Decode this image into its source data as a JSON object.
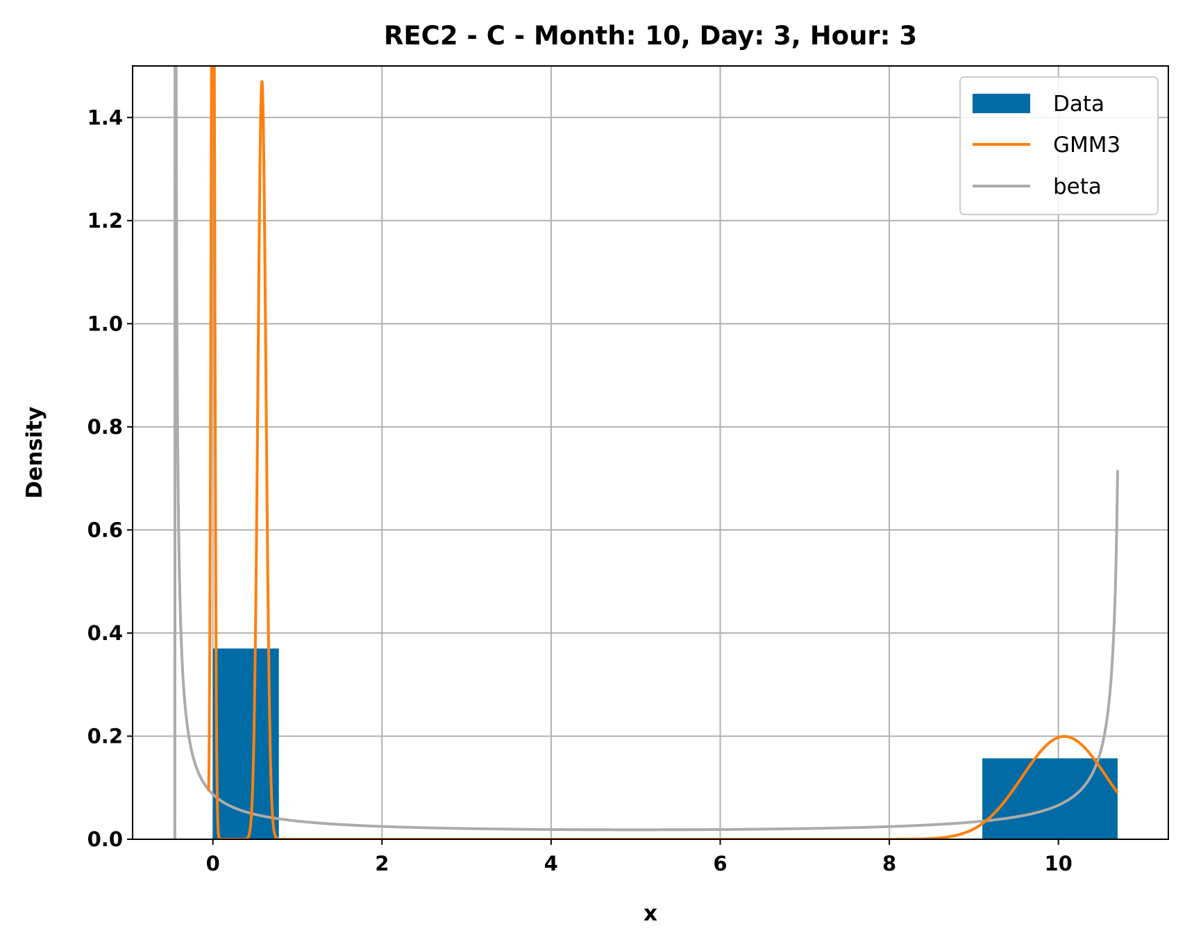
{
  "chart_data": {
    "type": "bar",
    "title": "REC2 - C - Month: 10, Day: 3, Hour: 3",
    "xlabel": "x",
    "ylabel": "Density",
    "xlim": [
      -0.95,
      11.3
    ],
    "ylim": [
      0,
      1.5
    ],
    "xticks": [
      0,
      2,
      4,
      6,
      8,
      10
    ],
    "yticks": [
      0.0,
      0.2,
      0.4,
      0.6,
      0.8,
      1.0,
      1.2,
      1.4
    ],
    "grid": true,
    "legend_position": "top-right",
    "histogram": {
      "name": "Data",
      "color": "#006ba4",
      "bins": [
        {
          "x0": 0.0,
          "x1": 0.78,
          "density": 0.37
        },
        {
          "x0": 9.1,
          "x1": 10.7,
          "density": 0.157
        }
      ]
    },
    "series": [
      {
        "name": "GMM3",
        "type": "line",
        "color": "#ff800e",
        "components": [
          {
            "weight": 0.107,
            "mean": 0.0,
            "sd": 0.02
          },
          {
            "weight": 0.175,
            "mean": 0.58,
            "sd": 0.0475
          },
          {
            "weight": 0.25,
            "mean": 10.07,
            "sd": 0.5
          }
        ],
        "x_range": [
          -0.05,
          10.7
        ]
      },
      {
        "name": "beta",
        "type": "line",
        "color": "#ababab",
        "alpha": 0.15,
        "beta": 0.1,
        "loc": -0.45,
        "scale": 11.2,
        "x_range": [
          -0.45,
          10.7
        ]
      }
    ]
  }
}
